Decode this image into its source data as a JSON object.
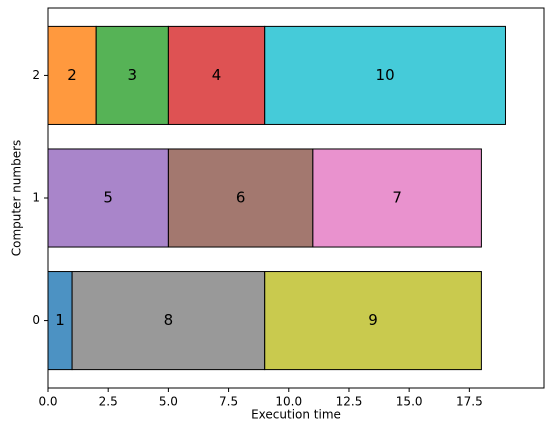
{
  "chart_data": {
    "type": "gantt",
    "x_label": "Execution time",
    "y_label": "Computer numbers",
    "categories": [
      "0",
      "1",
      "2"
    ],
    "series": [
      {
        "values": [
          1,
          5,
          2
        ],
        "colors": [
          "#1f77b4",
          "#9467bd",
          "#ff7f0e"
        ]
      },
      {
        "values": [
          8,
          6,
          3
        ],
        "colors": [
          "#7f7f7f",
          "#8c564b",
          "#2ca02c"
        ]
      },
      {
        "values": [
          9,
          7,
          4
        ],
        "colors": [
          "#bcbd22",
          "#e377c2",
          "#d62728"
        ]
      },
      {
        "values": [
          null,
          null,
          10
        ],
        "colors": [
          null,
          null,
          "#17becf"
        ]
      }
    ],
    "xlim": [
      0,
      20.6
    ],
    "xticks": [
      {
        "value": 0,
        "label": "0.0"
      },
      2.5,
      {
        "value": 5,
        "label": "5.0"
      },
      7.5,
      {
        "value": 10,
        "label": "10.0"
      },
      12.5,
      {
        "value": 15,
        "label": "15.0"
      },
      17.5
    ],
    "ylim": [
      -0.55,
      2.55
    ]
  }
}
